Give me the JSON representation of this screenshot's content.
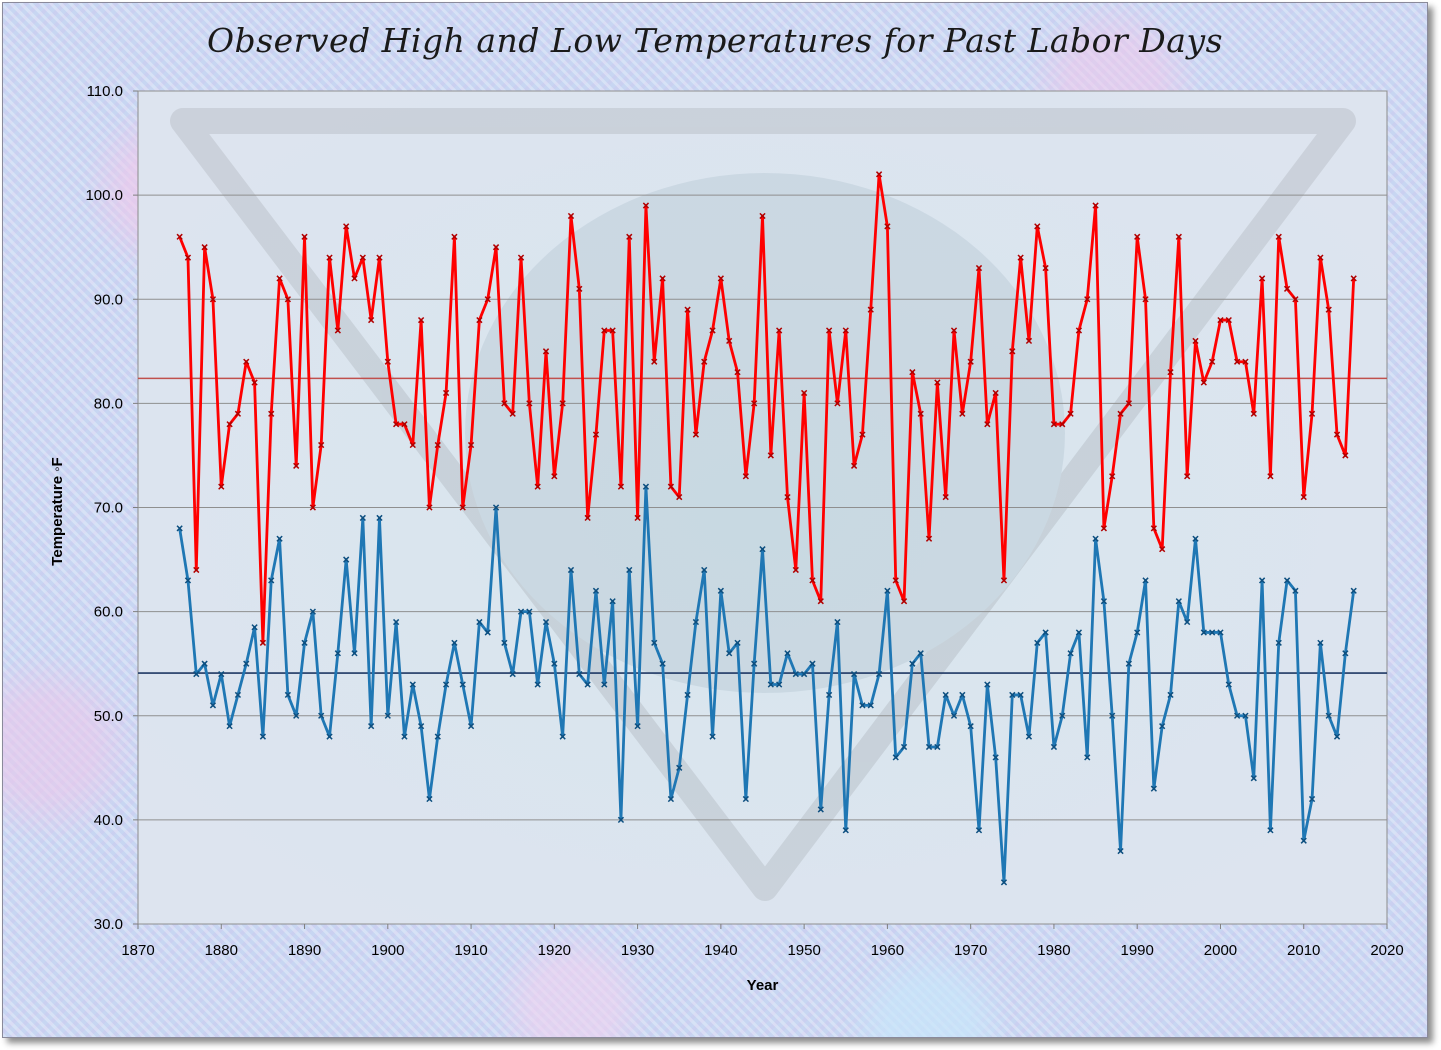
{
  "chart_data": {
    "type": "line",
    "title": "Observed High and Low Temperatures for Past Labor Days",
    "xlabel": "Year",
    "ylabel": "Temperature ◦F",
    "xlim": [
      1870,
      2020
    ],
    "ylim": [
      30,
      110
    ],
    "x_ticks": [
      "1870",
      "1880",
      "1890",
      "1900",
      "1910",
      "1920",
      "1930",
      "1940",
      "1950",
      "1960",
      "1970",
      "1980",
      "1990",
      "2000",
      "2010",
      "2020"
    ],
    "y_ticks": [
      "30.0",
      "40.0",
      "50.0",
      "60.0",
      "70.0",
      "80.0",
      "90.0",
      "100.0",
      "110.0"
    ],
    "grid": "horizontal",
    "reference_lines": [
      {
        "value": 82.4,
        "color": "#c0504d"
      },
      {
        "value": 54.1,
        "color": "#1f3864"
      }
    ],
    "x": [
      1875,
      1876,
      1877,
      1878,
      1879,
      1880,
      1881,
      1882,
      1883,
      1884,
      1885,
      1886,
      1887,
      1888,
      1889,
      1890,
      1891,
      1892,
      1893,
      1894,
      1895,
      1896,
      1897,
      1898,
      1899,
      1900,
      1901,
      1902,
      1903,
      1904,
      1905,
      1906,
      1907,
      1908,
      1909,
      1910,
      1911,
      1912,
      1913,
      1914,
      1915,
      1916,
      1917,
      1918,
      1919,
      1920,
      1921,
      1922,
      1923,
      1924,
      1925,
      1926,
      1927,
      1928,
      1929,
      1930,
      1931,
      1932,
      1933,
      1934,
      1935,
      1936,
      1937,
      1938,
      1939,
      1940,
      1941,
      1942,
      1943,
      1944,
      1945,
      1946,
      1947,
      1948,
      1949,
      1950,
      1951,
      1952,
      1953,
      1954,
      1955,
      1956,
      1957,
      1958,
      1959,
      1960,
      1961,
      1962,
      1963,
      1964,
      1965,
      1966,
      1967,
      1968,
      1969,
      1970,
      1971,
      1972,
      1973,
      1974,
      1975,
      1976,
      1977,
      1978,
      1979,
      1980,
      1981,
      1982,
      1983,
      1984,
      1985,
      1986,
      1987,
      1988,
      1989,
      1990,
      1991,
      1992,
      1993,
      1994,
      1995,
      1996,
      1997,
      1998,
      1999,
      2000,
      2001,
      2002,
      2003,
      2004,
      2005,
      2006,
      2007,
      2008,
      2009,
      2010,
      2011,
      2012,
      2013,
      2014,
      2015,
      2016
    ],
    "series": [
      {
        "color": "#ff0000",
        "values": [
          96,
          94,
          64,
          95,
          90,
          72,
          78,
          79,
          84,
          82,
          57,
          79,
          92,
          90,
          74,
          96,
          70,
          76,
          94,
          87,
          97,
          92,
          94,
          88,
          94,
          84,
          78,
          78,
          76,
          88,
          70,
          76,
          81,
          96,
          70,
          76,
          88,
          90,
          95,
          80,
          79,
          94,
          80,
          72,
          85,
          73,
          80,
          98,
          91,
          69,
          77,
          87,
          87,
          72,
          96,
          69,
          99,
          84,
          92,
          72,
          71,
          89,
          77,
          84,
          87,
          92,
          86,
          83,
          73,
          80,
          98,
          75,
          87,
          71,
          64,
          81,
          63,
          61,
          87,
          80,
          87,
          74,
          77,
          89,
          102,
          97,
          63,
          61,
          83,
          79,
          67,
          82,
          71,
          87,
          79,
          84,
          93,
          78,
          81,
          63,
          85,
          94,
          86,
          97,
          93,
          78,
          78,
          79,
          87,
          90,
          99,
          68,
          73,
          79,
          80,
          96,
          90,
          68,
          66,
          83,
          96,
          73,
          86,
          82,
          84,
          88,
          88,
          84,
          84,
          79,
          92,
          73,
          96,
          91,
          90,
          71,
          79,
          94,
          89,
          77,
          75,
          92
        ]
      },
      {
        "color": "#1f77b4",
        "values": [
          68,
          63,
          54,
          55,
          51,
          54,
          49,
          52,
          55,
          58.5,
          48,
          63,
          67,
          52,
          50,
          57,
          60,
          50,
          48,
          56,
          65,
          56,
          69,
          49,
          69,
          50,
          59,
          48,
          53,
          49,
          42,
          48,
          53,
          57,
          53,
          49,
          59,
          58,
          70,
          57,
          54,
          60,
          60,
          53,
          59,
          55,
          48,
          64,
          54,
          53,
          62,
          53,
          61,
          40,
          64,
          49,
          72,
          57,
          55,
          42,
          45,
          52,
          59,
          64,
          48,
          62,
          56,
          57,
          42,
          55,
          66,
          53,
          53,
          56,
          54,
          54,
          55,
          41,
          52,
          59,
          39,
          54,
          51,
          51,
          54,
          62,
          46,
          47,
          55,
          56,
          47,
          47,
          52,
          50,
          52,
          49,
          39,
          53,
          46,
          34,
          52,
          52,
          48,
          57,
          58,
          47,
          50,
          56,
          58,
          46,
          67,
          61,
          50,
          37,
          55,
          58,
          63,
          43,
          49,
          52,
          61,
          59,
          67,
          58,
          58,
          58,
          53,
          50,
          50,
          44,
          63,
          39,
          57,
          63,
          62,
          38,
          42,
          57,
          50,
          48,
          56,
          62
        ]
      }
    ]
  }
}
